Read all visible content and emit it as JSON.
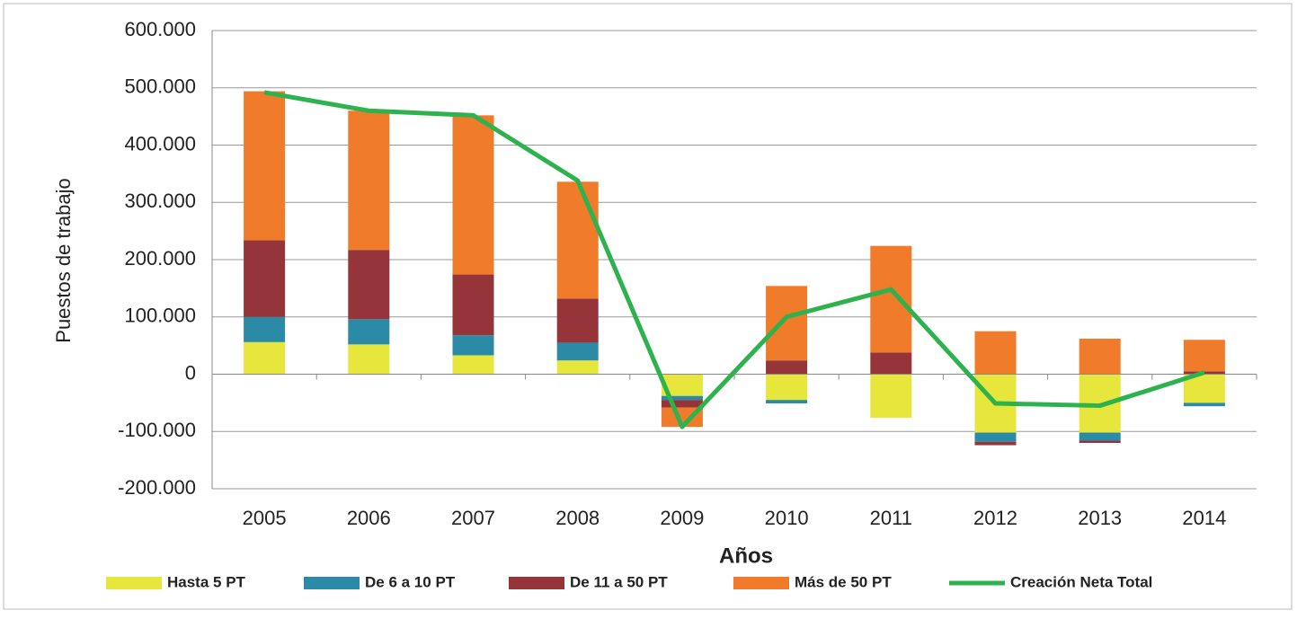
{
  "chart_data": {
    "type": "bar",
    "stacked": true,
    "x_label": "Años",
    "y_label": "Puestos de trabajo",
    "categories": [
      "2005",
      "2006",
      "2007",
      "2008",
      "2009",
      "2010",
      "2011",
      "2012",
      "2013",
      "2014"
    ],
    "series": [
      {
        "name": "Hasta 5 PT",
        "color": "#e6e63c",
        "values": [
          56000,
          52000,
          33000,
          24000,
          -38000,
          -45000,
          -76000,
          -102000,
          -102000,
          -50000
        ]
      },
      {
        "name": "De 6 a 10 PT",
        "color": "#2b8aa6",
        "values": [
          44000,
          44000,
          35000,
          31000,
          -7000,
          -6000,
          0,
          -16000,
          -14000,
          -6000
        ]
      },
      {
        "name": "De 11 a 50 PT",
        "color": "#953539",
        "values": [
          134000,
          121000,
          106000,
          77000,
          -13000,
          24000,
          38000,
          -6000,
          -4000,
          5000
        ]
      },
      {
        "name": "Más de 50 PT",
        "color": "#f07b2a",
        "values": [
          260000,
          243000,
          278000,
          204000,
          -34000,
          130000,
          186000,
          75000,
          62000,
          55000
        ]
      },
      {
        "name": "Creación Neta Total",
        "type": "line",
        "color": "#2eb24e",
        "values": [
          492000,
          460000,
          452000,
          338000,
          -92000,
          100000,
          148000,
          -51000,
          -55000,
          3000
        ]
      }
    ],
    "ylim": [
      -200000,
      600000
    ],
    "yticks": [
      {
        "value": -200000,
        "label": "-200.000"
      },
      {
        "value": -100000,
        "label": "-100.000"
      },
      0,
      {
        "value": 100000,
        "label": "100.000"
      },
      {
        "value": 200000,
        "label": "200.000"
      },
      {
        "value": 300000,
        "label": "300.000"
      },
      {
        "value": 400000,
        "label": "400.000"
      },
      {
        "value": 500000,
        "label": "500.000"
      },
      {
        "value": 600000,
        "label": "600.000"
      }
    ],
    "grid": true,
    "legend": "bottom"
  }
}
